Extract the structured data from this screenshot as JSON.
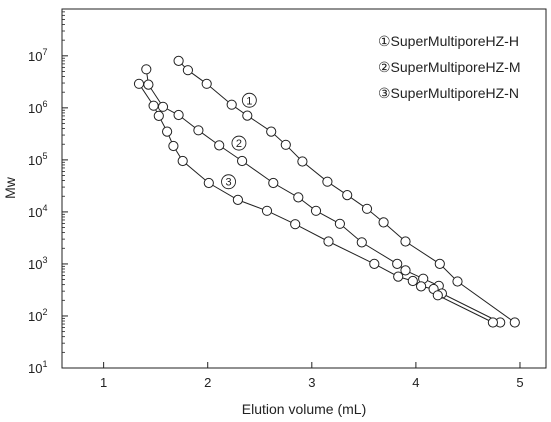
{
  "chart_data": {
    "type": "line",
    "xlabel": "Elution volume (mL)",
    "ylabel": "Mw",
    "xlim": [
      0.6,
      5.25
    ],
    "ylim_exponent": [
      1,
      7.9
    ],
    "yscale": "log",
    "x_ticks": [
      1,
      2,
      3,
      4,
      5
    ],
    "y_ticks": [
      {
        "exp": 1,
        "base": "10",
        "sup": "1"
      },
      {
        "exp": 2,
        "base": "10",
        "sup": "2"
      },
      {
        "exp": 3,
        "base": "10",
        "sup": "3"
      },
      {
        "exp": 4,
        "base": "10",
        "sup": "4"
      },
      {
        "exp": 5,
        "base": "10",
        "sup": "5"
      },
      {
        "exp": 6,
        "base": "10",
        "sup": "6"
      },
      {
        "exp": 7,
        "base": "10",
        "sup": "7"
      }
    ],
    "legend_position": "top-right",
    "series": [
      {
        "name": "①SuperMultiporeHZ-H",
        "marker_label": "1",
        "points": [
          [
            1.72,
            8000000
          ],
          [
            1.81,
            5300000
          ],
          [
            1.99,
            2900000
          ],
          [
            2.23,
            1150000
          ],
          [
            2.38,
            710000
          ],
          [
            2.61,
            350000
          ],
          [
            2.75,
            195000
          ],
          [
            2.91,
            93000
          ],
          [
            3.15,
            38000
          ],
          [
            3.34,
            21000
          ],
          [
            3.53,
            11500
          ],
          [
            3.69,
            6300
          ],
          [
            3.9,
            2700
          ],
          [
            4.23,
            1000
          ],
          [
            4.4,
            460
          ],
          [
            4.95,
            75
          ]
        ]
      },
      {
        "name": "②SuperMultiporeHZ-M",
        "marker_label": "2",
        "points": [
          [
            1.41,
            5500000
          ],
          [
            1.43,
            2800000
          ],
          [
            1.57,
            1050000
          ],
          [
            1.72,
            730000
          ],
          [
            1.91,
            370000
          ],
          [
            2.11,
            190000
          ],
          [
            2.33,
            95000
          ],
          [
            2.63,
            36000
          ],
          [
            2.87,
            19000
          ],
          [
            3.04,
            10500
          ],
          [
            3.27,
            5900
          ],
          [
            3.48,
            2600
          ],
          [
            3.82,
            1000
          ],
          [
            3.9,
            750
          ],
          [
            4.07,
            520
          ],
          [
            4.22,
            380
          ],
          [
            4.25,
            270
          ],
          [
            4.81,
            75
          ]
        ]
      },
      {
        "name": "③SuperMultiporeHZ-N",
        "marker_label": "3",
        "points": [
          [
            1.34,
            2900000
          ],
          [
            1.48,
            1100000
          ],
          [
            1.53,
            700000
          ],
          [
            1.61,
            350000
          ],
          [
            1.67,
            185000
          ],
          [
            1.76,
            95000
          ],
          [
            2.01,
            36000
          ],
          [
            2.29,
            17000
          ],
          [
            2.57,
            10500
          ],
          [
            2.84,
            5800
          ],
          [
            3.16,
            2700
          ],
          [
            3.6,
            1000
          ],
          [
            3.83,
            570
          ],
          [
            3.97,
            470
          ],
          [
            4.05,
            370
          ],
          [
            4.17,
            330
          ],
          [
            4.21,
            250
          ],
          [
            4.74,
            75
          ]
        ]
      }
    ]
  }
}
